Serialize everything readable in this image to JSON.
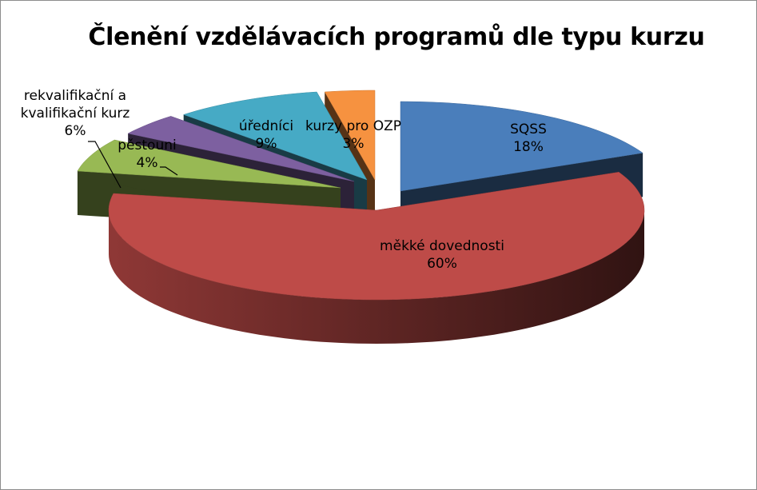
{
  "chart_data": {
    "type": "pie",
    "title": "Členění vzdělávacích programů dle typu kurzu",
    "slices": [
      {
        "label": "SQSS",
        "value_label": "18%",
        "value": 18,
        "color": "#4a7ebb"
      },
      {
        "label": "měkké dovednosti",
        "value_label": "60%",
        "value": 60,
        "color": "#be4b48"
      },
      {
        "label": "rekvalifikační a kvalifikační kurz",
        "value_label": "6%",
        "value": 6,
        "color": "#98b954"
      },
      {
        "label": "pěstouni",
        "value_label": "4%",
        "value": 4,
        "color": "#7d60a0"
      },
      {
        "label": "úředníci",
        "value_label": "9%",
        "value": 9,
        "color": "#46aac5"
      },
      {
        "label": "kurzy pro OZP",
        "value_label": "3%",
        "value": 3,
        "color": "#f69240"
      }
    ]
  }
}
